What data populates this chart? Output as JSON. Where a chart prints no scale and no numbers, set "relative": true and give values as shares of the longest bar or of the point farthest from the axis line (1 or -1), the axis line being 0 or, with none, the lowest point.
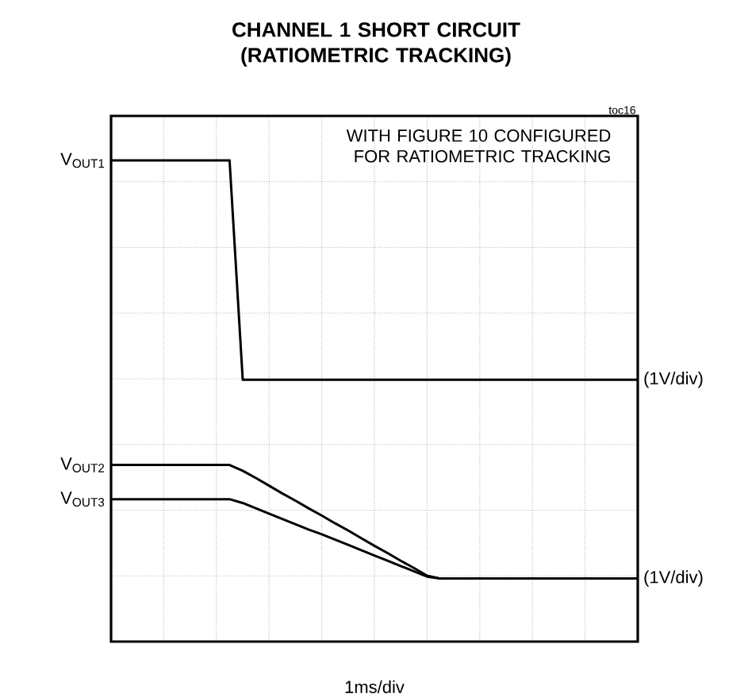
{
  "chart_data": {
    "type": "line",
    "title": "CHANNEL 1 SHORT CIRCUIT (RATIOMETRIC TRACKING)",
    "xlabel": "1ms/div",
    "relative": true,
    "grid": true,
    "annotations": [
      "(1V/div)",
      "(1V/div)",
      "WITH FIGURE 10 CONFIGURED FOR RATIOMETRIC TRACKING",
      "toc16"
    ],
    "categories": [
      null,
      null,
      null,
      null,
      null,
      null,
      null,
      null,
      null,
      null,
      null,
      null,
      null,
      null,
      null,
      null,
      null,
      null,
      null,
      null,
      null,
      null,
      null,
      null,
      null,
      null,
      null,
      null,
      null,
      null,
      null,
      null,
      null,
      null,
      null,
      null,
      null,
      null,
      null,
      null,
      null
    ],
    "series": [
      {
        "name": "V$_{OUT1}$",
        "color": "#000000",
        "values": [
          1,
          1,
          1,
          1,
          1,
          1,
          1,
          1,
          1,
          1,
          0.544,
          0.544,
          0.544,
          0.544,
          0.544,
          0.544,
          0.544,
          0.544,
          0.544,
          0.544,
          0.544,
          0.544,
          0.544,
          0.544,
          0.544,
          0.544,
          0.544,
          0.544,
          0.544,
          0.544,
          0.544,
          0.544,
          0.544,
          0.544,
          0.544,
          0.544,
          0.544,
          0.544,
          0.544,
          0.544,
          0.544
        ]
      },
      {
        "name": "V$_{OUT2}$",
        "color": "#000000",
        "values": [
          0.367,
          0.367,
          0.367,
          0.367,
          0.367,
          0.367,
          0.367,
          0.367,
          0.367,
          0.367,
          0.355,
          0.34,
          0.324,
          0.308,
          0.293,
          0.277,
          0.262,
          0.246,
          0.231,
          0.215,
          0.199,
          0.184,
          0.168,
          0.153,
          0.137,
          0.131,
          0.131,
          0.131,
          0.131,
          0.131,
          0.131,
          0.131,
          0.131,
          0.131,
          0.131,
          0.131,
          0.131,
          0.131,
          0.131,
          0.131,
          0.131
        ]
      },
      {
        "name": "V$_{OUT3}$",
        "color": "#000000",
        "values": [
          0.296,
          0.296,
          0.296,
          0.296,
          0.296,
          0.296,
          0.296,
          0.296,
          0.296,
          0.296,
          0.288,
          0.277,
          0.266,
          0.255,
          0.244,
          0.233,
          0.223,
          0.212,
          0.201,
          0.19,
          0.179,
          0.168,
          0.157,
          0.146,
          0.135,
          0.131,
          0.131,
          0.131,
          0.131,
          0.131,
          0.131,
          0.131,
          0.131,
          0.131,
          0.131,
          0.131,
          0.131,
          0.131,
          0.131,
          0.131,
          0.131
        ]
      }
    ]
  }
}
